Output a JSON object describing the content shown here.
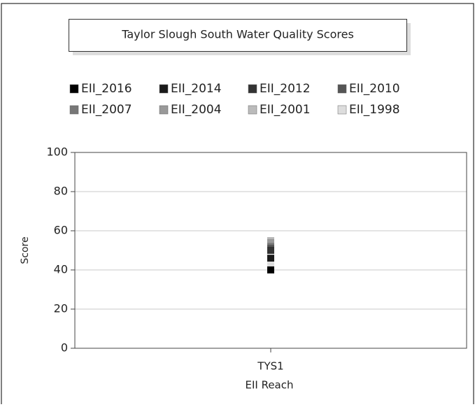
{
  "chart_data": {
    "type": "scatter",
    "title": "Taylor Slough South Water Quality Scores",
    "y_label": "Score",
    "x_label": "EII Reach",
    "categories": [
      "TYS1"
    ],
    "series": [
      {
        "name": "EII_2016",
        "color": "#000000",
        "values": [
          40
        ]
      },
      {
        "name": "EII_2014",
        "color": "#1a1a1a",
        "values": [
          46
        ]
      },
      {
        "name": "EII_2012",
        "color": "#333333",
        "values": [
          50
        ]
      },
      {
        "name": "EII_2010",
        "color": "#555555",
        "values": [
          51
        ]
      },
      {
        "name": "EII_2007",
        "color": "#777777",
        "values": [
          52
        ]
      },
      {
        "name": "EII_2004",
        "color": "#999999",
        "values": [
          54
        ]
      },
      {
        "name": "EII_2001",
        "color": "#bbbbbb",
        "values": [
          55
        ]
      },
      {
        "name": "EII_1998",
        "color": "#dddddd",
        "values": [
          42
        ]
      }
    ],
    "ylim": [
      0,
      100
    ],
    "yticks": [
      0,
      20,
      40,
      60,
      80,
      100
    ],
    "grid": true,
    "legend": "top"
  }
}
